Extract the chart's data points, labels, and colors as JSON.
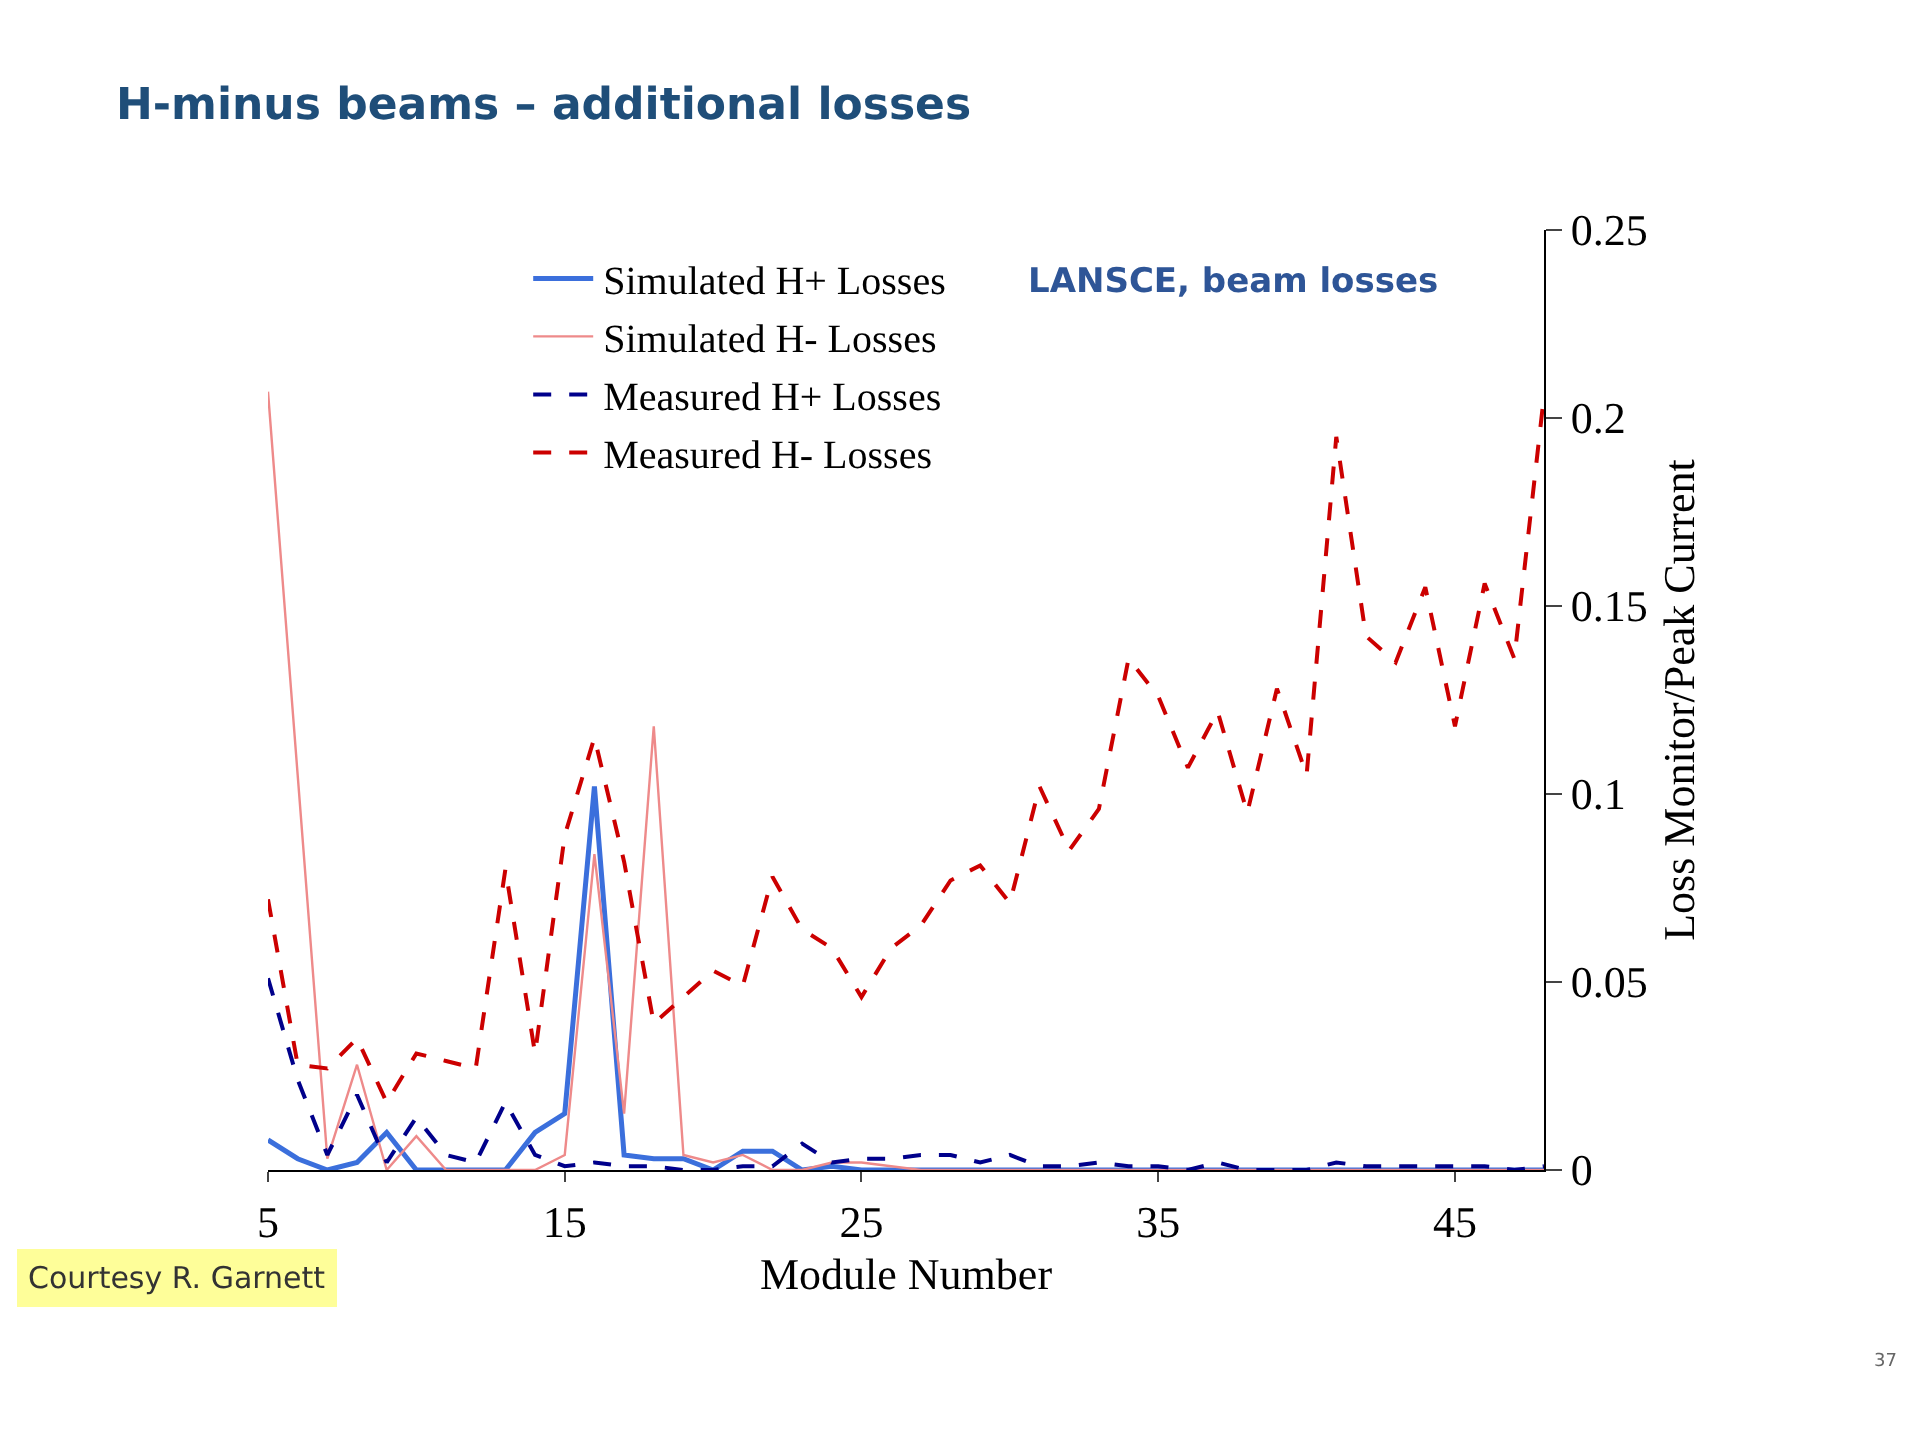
{
  "chart_data": {
    "type": "line",
    "title": "H-minus beams – additional losses",
    "xlabel": "Module Number",
    "y2label": "Loss Monitor/Peak Current",
    "x": [
      5,
      6,
      7,
      8,
      9,
      10,
      11,
      12,
      13,
      14,
      15,
      16,
      17,
      18,
      19,
      20,
      21,
      22,
      23,
      24,
      25,
      26,
      27,
      28,
      29,
      30,
      31,
      32,
      33,
      34,
      35,
      36,
      37,
      38,
      39,
      40,
      41,
      42,
      43,
      44,
      45,
      46,
      47,
      48
    ],
    "series": [
      {
        "name": "Simulated H+ Losses",
        "color": "#3b6fdc",
        "line_style": "solid",
        "axis": "y2",
        "values": [
          0.008,
          0.003,
          0,
          0.002,
          0.01,
          0,
          0,
          0,
          0,
          0.01,
          0.015,
          0.102,
          0.004,
          0.003,
          0.003,
          0,
          0.005,
          0.005,
          0,
          0.001,
          0,
          0,
          0,
          0,
          0,
          0,
          0,
          0,
          0,
          0,
          0,
          0,
          0,
          0,
          0,
          0,
          0,
          0,
          0,
          0,
          0,
          0,
          0,
          0
        ]
      },
      {
        "name": "Simulated H- Losses",
        "color": "#ee8a8a",
        "line_style": "solid",
        "axis": "y2",
        "values": [
          0.207,
          0.105,
          0.003,
          0.028,
          0,
          0.009,
          0,
          0,
          0,
          0,
          0.004,
          0.084,
          0.015,
          0.118,
          0.004,
          0.002,
          0.004,
          0,
          0,
          0.002,
          0.002,
          0.001,
          0,
          0,
          0,
          0,
          0,
          0,
          0,
          0,
          0,
          0,
          0,
          0,
          0,
          0,
          0,
          0,
          0,
          0,
          0,
          0,
          0,
          0
        ]
      },
      {
        "name": "Measured H+ Losses",
        "color": "#00008b",
        "line_style": "dashed",
        "axis": "y2",
        "values": [
          0.051,
          0.024,
          0.004,
          0.02,
          0.002,
          0.014,
          0.004,
          0.002,
          0.018,
          0.004,
          0.001,
          0.002,
          0.001,
          0.001,
          0,
          0,
          0.001,
          0.001,
          0.007,
          0.002,
          0.003,
          0.003,
          0.004,
          0.004,
          0.002,
          0.004,
          0.001,
          0.001,
          0.002,
          0.001,
          0.001,
          0,
          0.002,
          0,
          0,
          0,
          0.002,
          0.001,
          0.001,
          0.001,
          0.001,
          0.001,
          0,
          0.001
        ]
      },
      {
        "name": "Measured H- Losses",
        "color": "#cc0000",
        "line_style": "dashed",
        "axis": "y2",
        "values": [
          0.072,
          0.028,
          0.027,
          0.035,
          0.018,
          0.031,
          0.029,
          0.027,
          0.08,
          0.031,
          0.089,
          0.115,
          0.082,
          0.039,
          0.046,
          0.053,
          0.049,
          0.078,
          0.064,
          0.059,
          0.046,
          0.059,
          0.065,
          0.077,
          0.081,
          0.071,
          0.102,
          0.085,
          0.096,
          0.136,
          0.126,
          0.107,
          0.122,
          0.095,
          0.128,
          0.105,
          0.195,
          0.142,
          0.135,
          0.155,
          0.118,
          0.156,
          0.136,
          0.206
        ]
      }
    ],
    "xlim": [
      5,
      48
    ],
    "xticks": [
      5,
      15,
      25,
      35,
      45
    ],
    "y2lim": [
      0,
      0.25
    ],
    "y2ticks": [
      0,
      0.05,
      0.1,
      0.15,
      0.2,
      0.25
    ],
    "grid": false,
    "legend": "top left",
    "marker": "none",
    "annotations": [
      "LANSCE, beam losses",
      "Courtesy R. Garnett",
      "37"
    ]
  }
}
